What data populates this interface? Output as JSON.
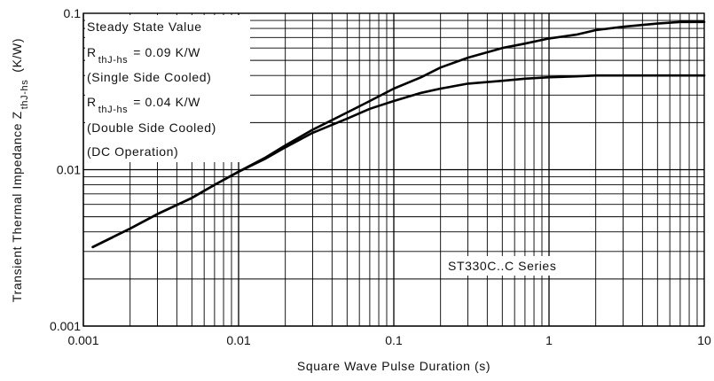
{
  "chart_data": {
    "type": "line",
    "xscale": "log",
    "yscale": "log",
    "xlim": [
      0.001,
      10
    ],
    "ylim": [
      0.001,
      0.1
    ],
    "grid": true,
    "xlabel": "Square Wave Pulse Duration (s)",
    "ylabel": {
      "main": "Transient Thermal Impedance Z",
      "sub": "thJ-hs",
      "unit": "(K/W)"
    },
    "x_ticks": [
      {
        "value": 0.001,
        "label": "0.001"
      },
      {
        "value": 0.01,
        "label": "0.01"
      },
      {
        "value": 0.1,
        "label": "0.1"
      },
      {
        "value": 1,
        "label": "1"
      },
      {
        "value": 10,
        "label": "10"
      }
    ],
    "y_ticks": [
      {
        "value": 0.001,
        "label": "0.001"
      },
      {
        "value": 0.01,
        "label": "0.01"
      },
      {
        "value": 0.1,
        "label": "0.1"
      }
    ],
    "series": [
      {
        "x": [
          0.00115,
          0.002,
          0.003,
          0.005,
          0.007,
          0.01,
          0.015,
          0.02,
          0.03,
          0.05,
          0.07,
          0.1,
          0.15,
          0.2,
          0.3,
          0.5,
          0.7,
          1,
          1.5,
          2,
          3,
          5,
          7,
          10
        ],
        "y": [
          0.0032,
          0.0042,
          0.0052,
          0.0066,
          0.008,
          0.0097,
          0.012,
          0.0143,
          0.018,
          0.0232,
          0.0275,
          0.033,
          0.039,
          0.045,
          0.052,
          0.06,
          0.064,
          0.069,
          0.073,
          0.078,
          0.082,
          0.086,
          0.088,
          0.088
        ]
      },
      {
        "x": [
          0.00115,
          0.002,
          0.003,
          0.005,
          0.007,
          0.01,
          0.015,
          0.02,
          0.03,
          0.05,
          0.07,
          0.1,
          0.15,
          0.2,
          0.3,
          0.5,
          0.7,
          1,
          1.5,
          2,
          3,
          5,
          7,
          10
        ],
        "y": [
          0.0032,
          0.0042,
          0.0052,
          0.0066,
          0.008,
          0.0097,
          0.0118,
          0.0139,
          0.0172,
          0.0212,
          0.0245,
          0.0275,
          0.031,
          0.033,
          0.0355,
          0.037,
          0.0382,
          0.039,
          0.0395,
          0.04,
          0.04,
          0.04,
          0.04,
          0.04
        ]
      }
    ],
    "annotations": {
      "line1": "Steady State Value",
      "line2_main": "R",
      "line2_sub": "thJ-hs",
      "line2_rest": "= 0.09 K/W",
      "line3": "(Single Side Cooled)",
      "line4_main": "R",
      "line4_sub": "thJ-hs",
      "line4_rest": "= 0.04 K/W",
      "line5": "(Double Side Cooled)",
      "line6": "(DC Operation)",
      "series_label": "ST330C..C Series"
    }
  }
}
